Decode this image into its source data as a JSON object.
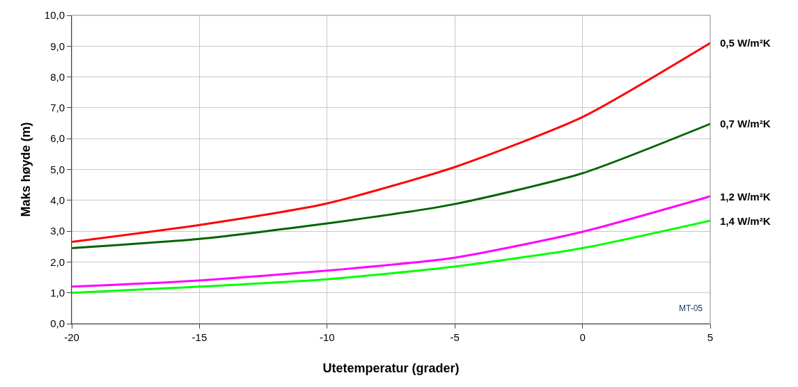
{
  "chart_data": {
    "type": "line",
    "xlabel": "Utetemperatur (grader)",
    "ylabel": "Maks høyde (m)",
    "x": [
      -20,
      -15,
      -10,
      -5,
      0,
      5
    ],
    "series": [
      {
        "name": "0,5 W/m²K",
        "color": "#ff0000",
        "values": [
          2.65,
          3.2,
          3.9,
          5.08,
          6.7,
          9.1
        ]
      },
      {
        "name": "0,7 W/m²K",
        "color": "#006400",
        "values": [
          2.45,
          2.75,
          3.25,
          3.88,
          4.88,
          6.48
        ]
      },
      {
        "name": "1,2 W/m²K",
        "color": "#ff00ff",
        "values": [
          1.2,
          1.4,
          1.72,
          2.14,
          2.98,
          4.13
        ]
      },
      {
        "name": "1,4 W/m²K",
        "color": "#00ff00",
        "values": [
          1.0,
          1.2,
          1.44,
          1.85,
          2.45,
          3.34
        ]
      }
    ],
    "xlim": [
      -20,
      5
    ],
    "xticks": [
      -20,
      -15,
      -10,
      -5,
      0,
      5
    ],
    "ylim": [
      0,
      10
    ],
    "yticks": [
      {
        "value": 0,
        "label": "0,0"
      },
      {
        "value": 1,
        "label": "1,0"
      },
      {
        "value": 2,
        "label": "2,0"
      },
      {
        "value": 3,
        "label": "3,0"
      },
      {
        "value": 4,
        "label": "4,0"
      },
      {
        "value": 5,
        "label": "5,0"
      },
      {
        "value": 6,
        "label": "6,0"
      },
      {
        "value": 7,
        "label": "7,0"
      },
      {
        "value": 8,
        "label": "8,0"
      },
      {
        "value": 9,
        "label": "9,0"
      },
      {
        "value": 10,
        "label": "10,0"
      }
    ],
    "grid": true,
    "legend": false,
    "marker": "none",
    "line_style": "solid",
    "annotations": [
      "MT-05"
    ]
  }
}
